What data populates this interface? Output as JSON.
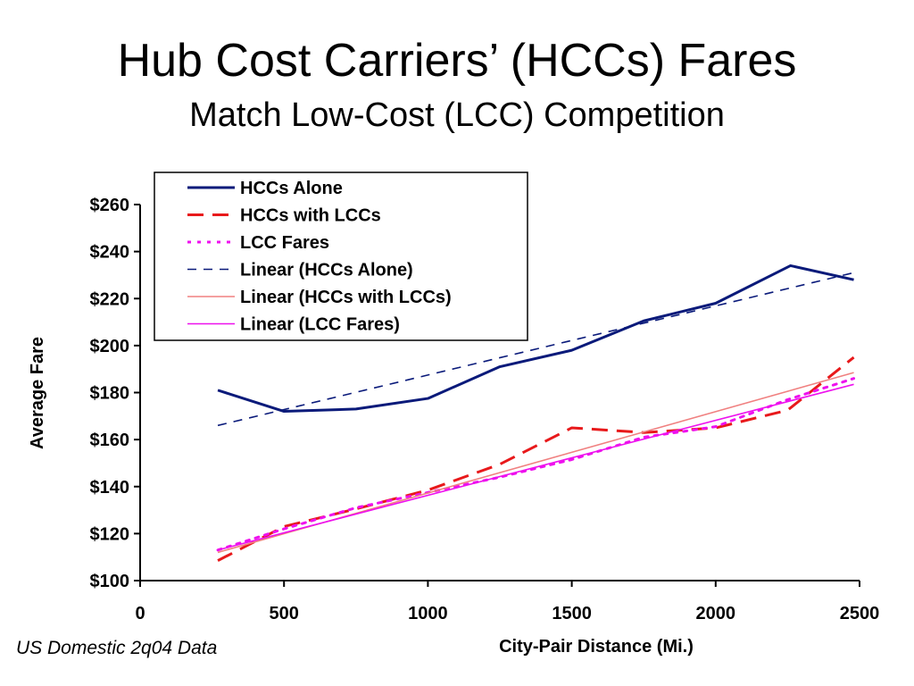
{
  "slide": {
    "title": "Hub Cost Carriers’ (HCCs) Fares",
    "subtitle": "Match Low-Cost (LCC) Competition",
    "footnote": "US Domestic 2q04 Data"
  },
  "chart_data": {
    "type": "line",
    "title": "",
    "xlabel": "City-Pair Distance (Mi.)",
    "ylabel": "Average Fare",
    "xlim": [
      0,
      2500
    ],
    "ylim": [
      100,
      260
    ],
    "xticks": [
      0,
      500,
      1000,
      1500,
      2000,
      2500
    ],
    "yticks": [
      100,
      120,
      140,
      160,
      180,
      200,
      220,
      240,
      260
    ],
    "ytick_labels": [
      "$100",
      "$120",
      "$140",
      "$160",
      "$180",
      "$200",
      "$220",
      "$240",
      "$260"
    ],
    "grid": false,
    "legend_position": "top-left",
    "series": [
      {
        "name": "HCCs Alone",
        "color": "#0a1a7a",
        "style": "solid",
        "width": 3,
        "points": [
          [
            270,
            181
          ],
          [
            500,
            172
          ],
          [
            750,
            173
          ],
          [
            1000,
            177.5
          ],
          [
            1250,
            191
          ],
          [
            1500,
            198
          ],
          [
            1750,
            210.5
          ],
          [
            2000,
            218
          ],
          [
            2260,
            234
          ],
          [
            2480,
            228
          ]
        ]
      },
      {
        "name": "HCCs with LCCs",
        "color": "#e8191b",
        "style": "longdash",
        "width": 3,
        "points": [
          [
            270,
            108.5
          ],
          [
            500,
            123
          ],
          [
            750,
            130.5
          ],
          [
            1000,
            138.5
          ],
          [
            1250,
            149.5
          ],
          [
            1500,
            165
          ],
          [
            1750,
            163
          ],
          [
            2000,
            165
          ],
          [
            2250,
            172.5
          ],
          [
            2480,
            195
          ]
        ]
      },
      {
        "name": "LCC Fares",
        "color": "#ee11ee",
        "style": "dot",
        "width": 3,
        "points": [
          [
            270,
            113
          ],
          [
            500,
            122
          ],
          [
            750,
            131
          ],
          [
            1000,
            137.5
          ],
          [
            1250,
            144
          ],
          [
            1500,
            151.5
          ],
          [
            1750,
            161
          ],
          [
            2000,
            165.5
          ],
          [
            2250,
            177
          ],
          [
            2480,
            186
          ]
        ]
      },
      {
        "name": "Linear (HCCs Alone)",
        "color": "#0a1a7a",
        "style": "dash",
        "width": 1.6,
        "points": [
          [
            270,
            166
          ],
          [
            2480,
            231
          ]
        ]
      },
      {
        "name": "Linear (HCCs with LCCs)",
        "color": "#f08080",
        "style": "solid",
        "width": 1.6,
        "points": [
          [
            270,
            112
          ],
          [
            2480,
            188.5
          ]
        ]
      },
      {
        "name": "Linear (LCC Fares)",
        "color": "#ee11ee",
        "style": "solid",
        "width": 1.6,
        "points": [
          [
            270,
            113
          ],
          [
            2480,
            183.5
          ]
        ]
      }
    ]
  }
}
